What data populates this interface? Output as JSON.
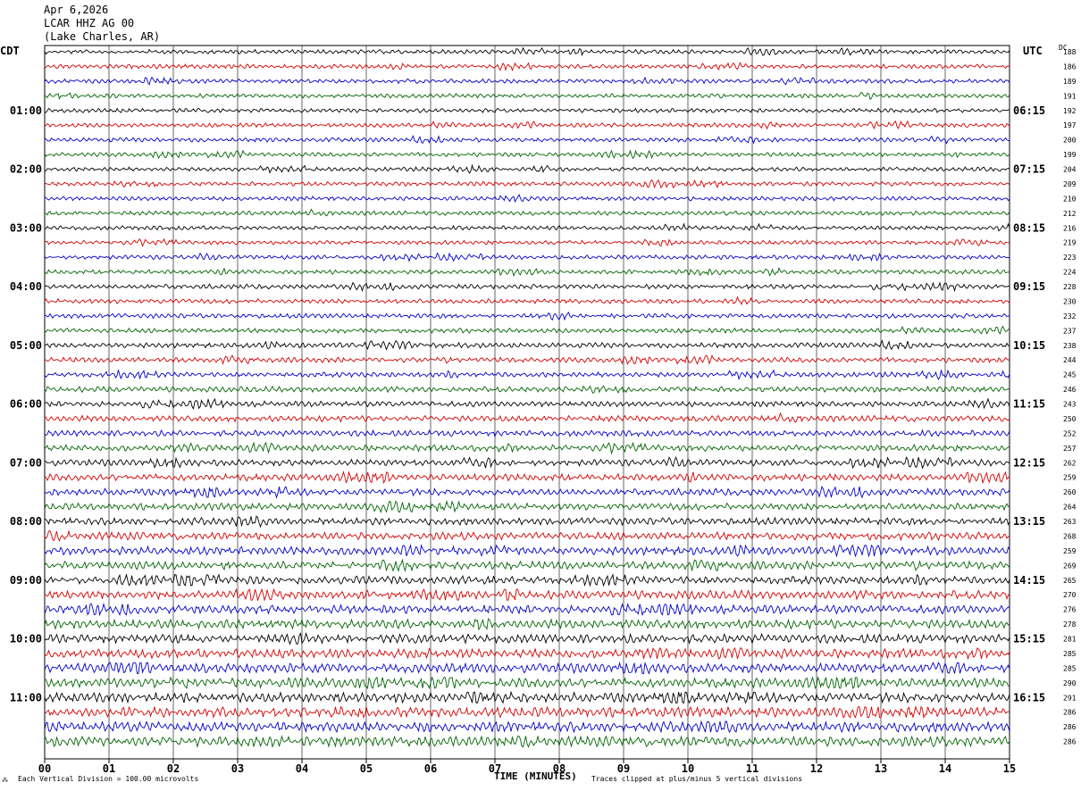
{
  "header": {
    "date": "Apr 6,2026",
    "station": "LCAR HHZ AG 00",
    "location": "(Lake Charles, AR)"
  },
  "left_tz": "CDT",
  "right_tz": "UTC",
  "dc_label": "DC",
  "footer": {
    "scale_icon": "scale-marker-icon",
    "scale_note": "Each Vertical Division =  100.00 microvolts",
    "xlabel": "TIME (MINUTES)",
    "clip_note": "Traces clipped at plus/minus 5 vertical divisions"
  },
  "colors": {
    "trace_cycle": [
      "#000000",
      "#d40000",
      "#0000c8",
      "#006400"
    ],
    "grid": "#000000",
    "background": "#ffffff"
  },
  "chart_data": {
    "type": "line",
    "title": "",
    "xlabel": "TIME (MINUTES)",
    "xlim": [
      0,
      15
    ],
    "x_ticks": [
      "00",
      "01",
      "02",
      "03",
      "04",
      "05",
      "06",
      "07",
      "08",
      "09",
      "10",
      "11",
      "12",
      "13",
      "14",
      "15"
    ],
    "rows_per_hour": 4,
    "row_minutes": 15,
    "left_hour_labels": [
      "01:00",
      "02:00",
      "03:00",
      "04:00",
      "05:00",
      "06:00",
      "07:00",
      "08:00",
      "09:00",
      "10:00",
      "11:00"
    ],
    "right_hour_labels": [
      "06:15",
      "07:15",
      "08:15",
      "09:15",
      "10:15",
      "11:15",
      "12:15",
      "13:15",
      "14:15",
      "15:15",
      "16:15"
    ],
    "dc_offsets": [
      "188",
      "186",
      "189",
      "191",
      "192",
      "197",
      "200",
      "199",
      "204",
      "209",
      "210",
      "212",
      "216",
      "219",
      "223",
      "224",
      "228",
      "230",
      "232",
      "237",
      "238",
      "244",
      "245",
      "246",
      "243",
      "250",
      "252",
      "257",
      "262",
      "259",
      "260",
      "264",
      "263",
      "268",
      "259",
      "269",
      "265",
      "270",
      "276",
      "278",
      "281",
      "285",
      "285",
      "290",
      "291",
      "286",
      "286",
      "286"
    ],
    "amplitude_per_row": [
      1.0,
      1.0,
      1.0,
      1.0,
      1.0,
      1.0,
      1.0,
      1.0,
      1.0,
      1.0,
      1.0,
      1.0,
      1.0,
      1.0,
      1.0,
      1.0,
      1.1,
      1.1,
      1.1,
      1.1,
      1.2,
      1.2,
      1.2,
      1.3,
      1.3,
      1.4,
      1.4,
      1.5,
      1.5,
      1.6,
      1.6,
      1.6,
      1.7,
      1.8,
      1.9,
      1.9,
      1.9,
      2.0,
      2.0,
      2.1,
      2.1,
      2.2,
      2.2,
      2.2,
      2.3,
      2.3,
      2.4,
      2.4
    ],
    "grid": true
  }
}
